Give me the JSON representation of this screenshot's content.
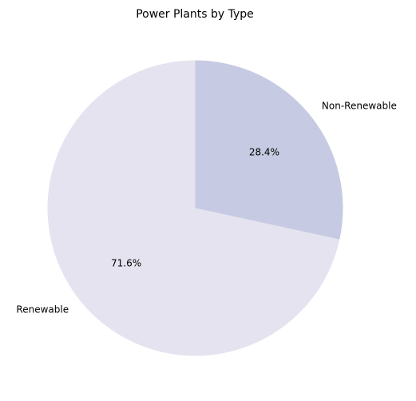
{
  "chart_data": {
    "type": "pie",
    "title": "Power Plants by Type",
    "categories": [
      "Renewable",
      "Non-Renewable"
    ],
    "values": [
      71.6,
      28.4
    ],
    "value_labels": [
      "71.6%",
      "28.4%"
    ],
    "colors": [
      "#e6e3f0",
      "#c6cbe3"
    ],
    "start_angle_deg": 90,
    "direction": "counterclockwise",
    "legend": "none"
  }
}
